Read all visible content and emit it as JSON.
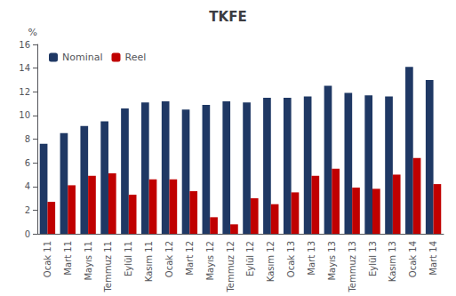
{
  "chart_data": {
    "type": "bar",
    "title": "TKFE",
    "ylabel": "%",
    "categories": [
      "Ocak 11",
      "Mart 11",
      "Mayıs 11",
      "Temmuz 11",
      "Eylül 11",
      "Kasım 11",
      "Ocak 12",
      "Mart 12",
      "Mayıs 12",
      "Temmuz 12",
      "Eylül 12",
      "Kasım 12",
      "Ocak 13",
      "Mart 13",
      "Mayıs 13",
      "Temmuz 13",
      "Eylül 13",
      "Kasım 13",
      "Ocak 14",
      "Mart 14"
    ],
    "series": [
      {
        "name": "Nominal",
        "color": "#1F3864",
        "values": [
          7.6,
          8.5,
          9.1,
          9.5,
          10.6,
          11.1,
          11.2,
          10.5,
          10.9,
          11.2,
          11.1,
          11.5,
          11.5,
          11.6,
          12.5,
          11.9,
          11.7,
          11.6,
          14.1,
          13.0
        ]
      },
      {
        "name": "Reel",
        "color": "#C00000",
        "values": [
          2.7,
          4.1,
          4.9,
          5.1,
          3.3,
          4.6,
          4.6,
          3.6,
          1.4,
          0.8,
          3.0,
          2.5,
          3.5,
          4.9,
          5.5,
          3.9,
          3.8,
          5.0,
          6.4,
          4.2
        ]
      }
    ],
    "ylim": [
      0,
      16
    ],
    "yticks": [
      0,
      2,
      4,
      6,
      8,
      10,
      12,
      14,
      16
    ],
    "grid": false,
    "legend": "upper left"
  }
}
